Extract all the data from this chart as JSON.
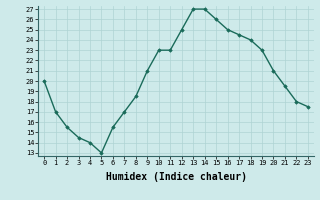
{
  "title": "",
  "xlabel": "Humidex (Indice chaleur)",
  "ylabel": "",
  "x_values": [
    0,
    1,
    2,
    3,
    4,
    5,
    6,
    7,
    8,
    9,
    10,
    11,
    12,
    13,
    14,
    15,
    16,
    17,
    18,
    19,
    20,
    21,
    22,
    23
  ],
  "y_values": [
    20,
    17,
    15.5,
    14.5,
    14,
    13,
    15.5,
    17,
    18.5,
    21,
    23,
    23,
    25,
    27,
    27,
    26,
    25,
    24.5,
    24,
    23,
    21,
    19.5,
    18,
    17.5
  ],
  "ylim": [
    13,
    27
  ],
  "xlim": [
    -0.5,
    23.5
  ],
  "yticks": [
    13,
    14,
    15,
    16,
    17,
    18,
    19,
    20,
    21,
    22,
    23,
    24,
    25,
    26,
    27
  ],
  "xticks": [
    0,
    1,
    2,
    3,
    4,
    5,
    6,
    7,
    8,
    9,
    10,
    11,
    12,
    13,
    14,
    15,
    16,
    17,
    18,
    19,
    20,
    21,
    22,
    23
  ],
  "line_color": "#1a6b5a",
  "marker": "D",
  "marker_size": 1.8,
  "line_width": 1.0,
  "bg_color": "#ceeaea",
  "grid_color": "#afd4d4",
  "tick_label_fontsize": 5.0,
  "xlabel_fontsize": 7.0,
  "xlabel_fontweight": "bold"
}
